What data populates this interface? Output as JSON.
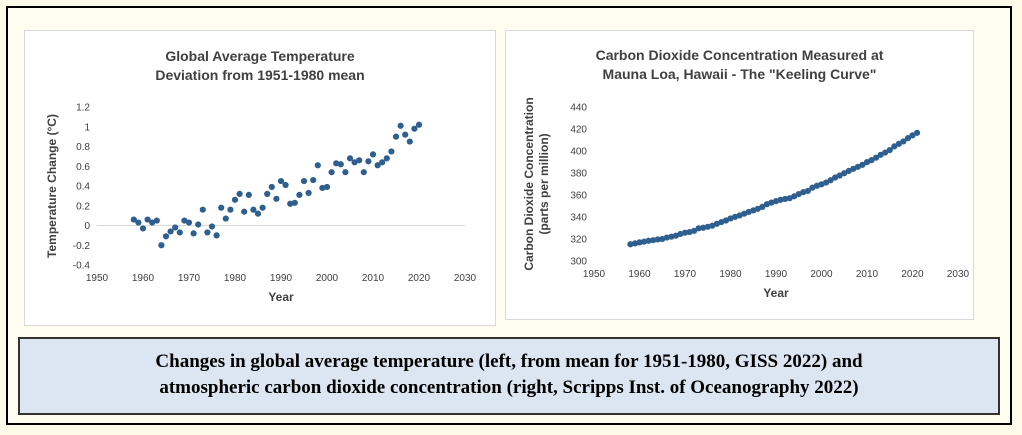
{
  "chart_data": [
    {
      "type": "scatter",
      "title_lines": [
        "Global Average Temperature",
        "Deviation from 1951-1980 mean"
      ],
      "xlabel": "Year",
      "ylabel": "Temperature Change (°C)",
      "xlim": [
        1950,
        2030
      ],
      "ylim": [
        -0.4,
        1.2
      ],
      "xticks": [
        1950,
        1960,
        1970,
        1980,
        1990,
        2000,
        2010,
        2020,
        2030
      ],
      "yticks": [
        -0.4,
        -0.2,
        0,
        0.2,
        0.4,
        0.6,
        0.8,
        1,
        1.2
      ],
      "marker_color": "#2e5f8f",
      "x": [
        1958,
        1959,
        1960,
        1961,
        1962,
        1963,
        1964,
        1965,
        1966,
        1967,
        1968,
        1969,
        1970,
        1971,
        1972,
        1973,
        1974,
        1975,
        1976,
        1977,
        1978,
        1979,
        1980,
        1981,
        1982,
        1983,
        1984,
        1985,
        1986,
        1987,
        1988,
        1989,
        1990,
        1991,
        1992,
        1993,
        1994,
        1995,
        1996,
        1997,
        1998,
        1999,
        2000,
        2001,
        2002,
        2003,
        2004,
        2005,
        2006,
        2007,
        2008,
        2009,
        2010,
        2011,
        2012,
        2013,
        2014,
        2015,
        2016,
        2017,
        2018,
        2019,
        2020
      ],
      "y": [
        0.06,
        0.03,
        -0.03,
        0.06,
        0.03,
        0.05,
        -0.2,
        -0.11,
        -0.06,
        -0.02,
        -0.07,
        0.05,
        0.03,
        -0.08,
        0.01,
        0.16,
        -0.07,
        -0.01,
        -0.1,
        0.18,
        0.07,
        0.16,
        0.26,
        0.32,
        0.14,
        0.31,
        0.16,
        0.12,
        0.18,
        0.32,
        0.39,
        0.27,
        0.45,
        0.41,
        0.22,
        0.23,
        0.31,
        0.45,
        0.33,
        0.46,
        0.61,
        0.38,
        0.39,
        0.54,
        0.63,
        0.62,
        0.54,
        0.68,
        0.64,
        0.66,
        0.54,
        0.65,
        0.72,
        0.61,
        0.64,
        0.68,
        0.75,
        0.9,
        1.01,
        0.92,
        0.85,
        0.98,
        1.02
      ]
    },
    {
      "type": "scatter",
      "title_lines": [
        "Carbon Dioxide Concentration Measured at",
        "Mauna Loa, Hawaii - The \"Keeling Curve\""
      ],
      "xlabel": "Year",
      "ylabel_lines": [
        "Carbon Dioxide Concentration",
        "(parts per million)"
      ],
      "xlim": [
        1950,
        2030
      ],
      "ylim": [
        300,
        440
      ],
      "xticks": [
        1950,
        1960,
        1970,
        1980,
        1990,
        2000,
        2010,
        2020,
        2030
      ],
      "yticks": [
        300,
        320,
        340,
        360,
        380,
        400,
        420,
        440
      ],
      "marker_color": "#2e5f8f",
      "x": [
        1958,
        1959,
        1960,
        1961,
        1962,
        1963,
        1964,
        1965,
        1966,
        1967,
        1968,
        1969,
        1970,
        1971,
        1972,
        1973,
        1974,
        1975,
        1976,
        1977,
        1978,
        1979,
        1980,
        1981,
        1982,
        1983,
        1984,
        1985,
        1986,
        1987,
        1988,
        1989,
        1990,
        1991,
        1992,
        1993,
        1994,
        1995,
        1996,
        1997,
        1998,
        1999,
        2000,
        2001,
        2002,
        2003,
        2004,
        2005,
        2006,
        2007,
        2008,
        2009,
        2010,
        2011,
        2012,
        2013,
        2014,
        2015,
        2016,
        2017,
        2018,
        2019,
        2020,
        2021
      ],
      "y": [
        315.2,
        316.0,
        316.9,
        317.6,
        318.4,
        318.9,
        319.6,
        320.0,
        321.3,
        322.1,
        323.0,
        324.6,
        325.7,
        326.3,
        327.4,
        329.7,
        330.2,
        331.1,
        332.1,
        333.8,
        335.4,
        336.8,
        338.7,
        340.1,
        341.4,
        343.0,
        344.6,
        346.0,
        347.4,
        349.2,
        351.6,
        353.1,
        354.4,
        355.6,
        356.4,
        357.1,
        358.8,
        360.8,
        362.6,
        363.7,
        366.7,
        368.4,
        369.7,
        371.3,
        373.4,
        375.9,
        377.7,
        379.8,
        381.9,
        383.8,
        385.6,
        387.4,
        389.9,
        391.7,
        393.9,
        396.5,
        398.6,
        400.8,
        404.2,
        406.5,
        408.7,
        411.7,
        414.2,
        416.5
      ]
    }
  ],
  "caption": {
    "line1": "Changes in global average temperature (left, from mean for 1951-1980, GISS 2022) and",
    "line2": "atmospheric carbon dioxide concentration (right, Scripps Inst. of Oceanography 2022)"
  }
}
